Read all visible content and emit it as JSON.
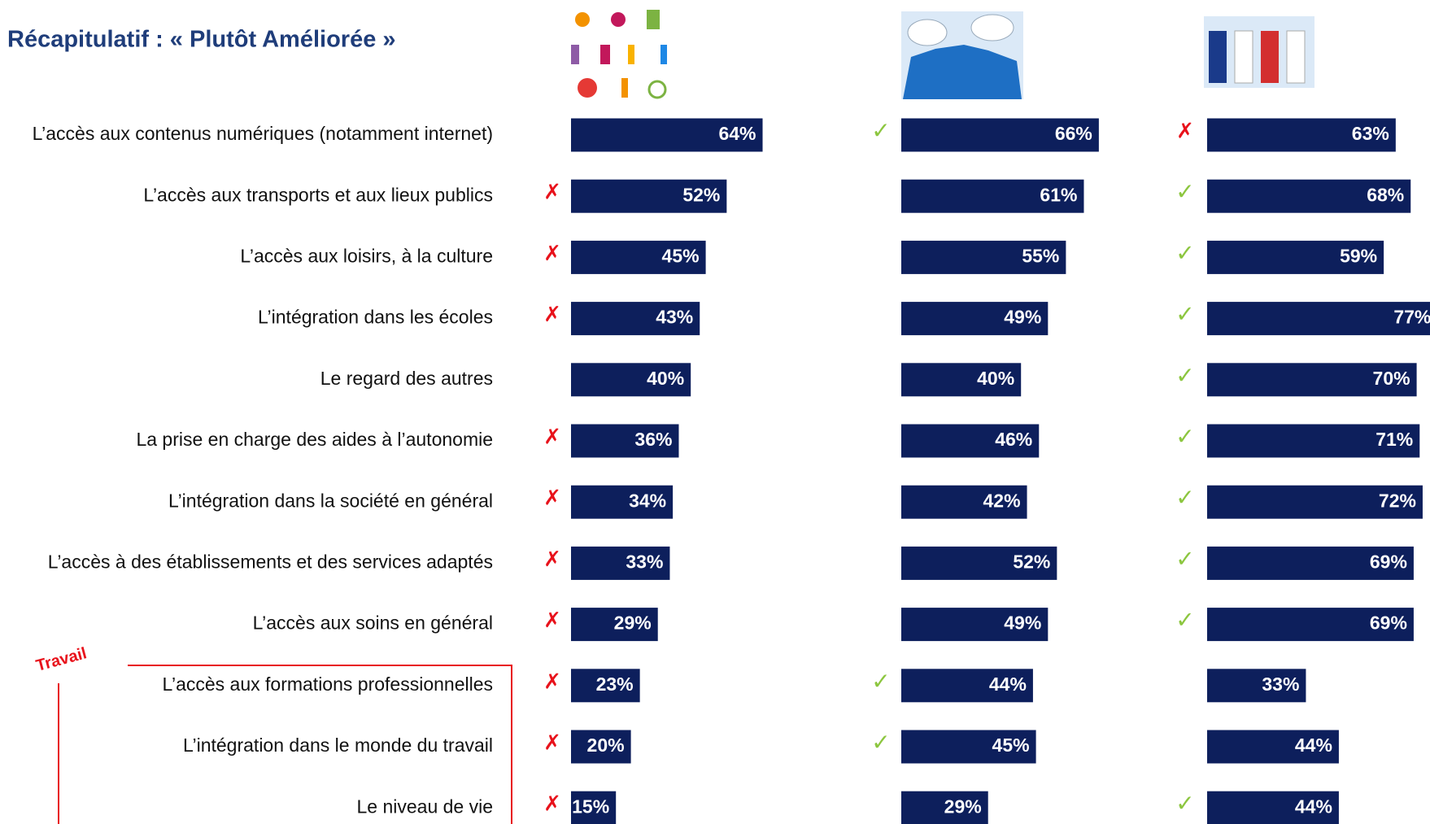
{
  "chart_data": {
    "type": "bar",
    "title": "Récapitulatif : « Plutôt Améliorée »",
    "annotation": "Travail",
    "categories": [
      "L’accès aux contenus numériques (notamment internet)",
      "L’accès aux transports et aux lieux publics",
      "L’accès aux loisirs, à la culture",
      "L’intégration dans les écoles",
      "Le regard des autres",
      "La prise en charge des aides à l’autonomie",
      "L’intégration dans la société en général",
      "L’accès à des établissements et des services adaptés",
      "L’accès aux soins en général",
      "L’accès aux formations professionnelles",
      "L’intégration dans le monde du travail",
      "Le niveau de vie"
    ],
    "series": [
      {
        "color": "#0d1f5c",
        "values": [
          64,
          52,
          45,
          43,
          40,
          36,
          34,
          33,
          29,
          23,
          20,
          15
        ],
        "value_labels": [
          "64%",
          "52%",
          "45%",
          "43%",
          "40%",
          "36%",
          "34%",
          "33%",
          "29%",
          "23%",
          "20%",
          "15%"
        ],
        "markers": [
          null,
          "✗",
          "✗",
          "✗",
          null,
          "✗",
          "✗",
          "✗",
          "✗",
          "✗",
          "✗",
          "✗"
        ]
      },
      {
        "color": "#0d1f5c",
        "values": [
          66,
          61,
          55,
          49,
          40,
          46,
          42,
          52,
          49,
          44,
          45,
          29
        ],
        "value_labels": [
          "66%",
          "61%",
          "55%",
          "49%",
          "40%",
          "46%",
          "42%",
          "52%",
          "49%",
          "44%",
          "45%",
          "29%"
        ],
        "markers": [
          "✓",
          null,
          null,
          null,
          null,
          null,
          null,
          null,
          null,
          "✓",
          "✓",
          null
        ]
      },
      {
        "color": "#0d1f5c",
        "values": [
          63,
          68,
          59,
          77,
          70,
          71,
          72,
          69,
          69,
          33,
          44,
          44
        ],
        "value_labels": [
          "63%",
          "68%",
          "59%",
          "77%",
          "70%",
          "71%",
          "72%",
          "69%",
          "69%",
          "33%",
          "44%",
          "44%"
        ],
        "markers": [
          "✗",
          "✓",
          "✓",
          "✓",
          "✓",
          "✓",
          "✓",
          "✓",
          "✓",
          null,
          null,
          "✓"
        ]
      }
    ]
  }
}
